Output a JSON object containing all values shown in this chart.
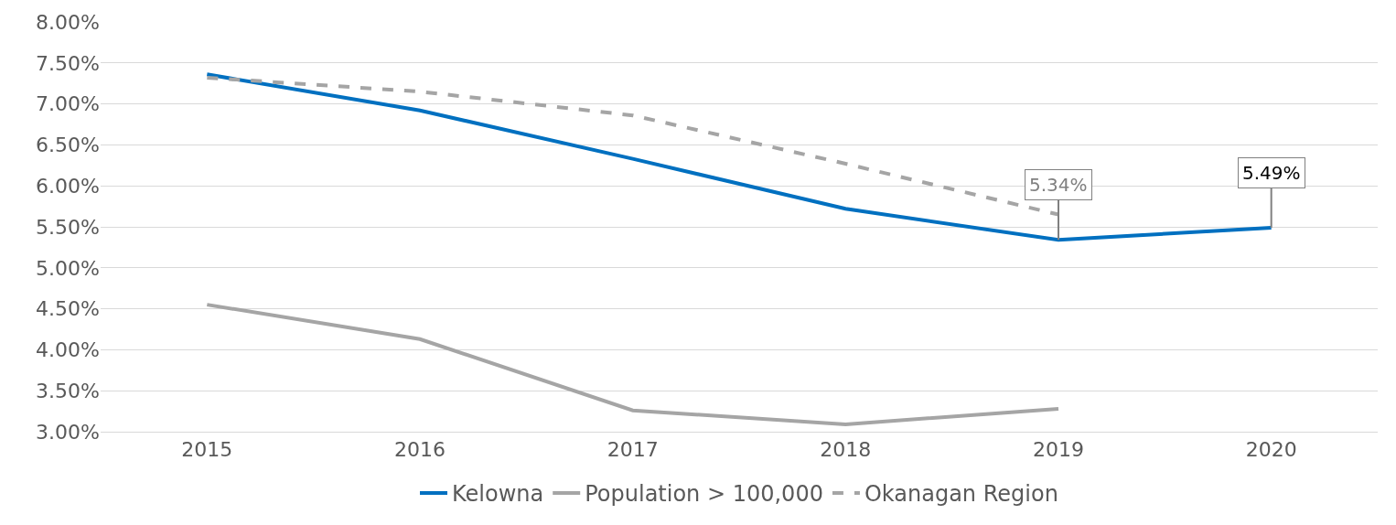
{
  "chart_data": {
    "type": "line",
    "categories": [
      "2015",
      "2016",
      "2017",
      "2018",
      "2019",
      "2020"
    ],
    "series": [
      {
        "name": "Kelowna",
        "color": "#0070c0",
        "values": [
          7.36,
          6.92,
          6.33,
          5.72,
          5.34,
          5.49
        ]
      },
      {
        "name": "Population > 100,000",
        "color": "#a5a5a5",
        "values": [
          4.55,
          4.13,
          3.26,
          3.09,
          3.28,
          null
        ]
      },
      {
        "name": "Okanagan Region",
        "color": "#a5a5a5",
        "line_style": "dashed",
        "values": [
          7.32,
          7.15,
          6.86,
          6.27,
          5.65,
          null
        ]
      }
    ],
    "ylim": [
      3,
      8
    ],
    "yticks": [
      {
        "value": 3,
        "label": "3.00%"
      },
      {
        "value": 3.5,
        "label": "3.50%"
      },
      {
        "value": 4,
        "label": "4.00%"
      },
      {
        "value": 4.5,
        "label": "4.50%"
      },
      {
        "value": 5,
        "label": "5.00%"
      },
      {
        "value": 5.5,
        "label": "5.50%"
      },
      {
        "value": 6,
        "label": "6.00%"
      },
      {
        "value": 6.5,
        "label": "6.50%"
      },
      {
        "value": 7,
        "label": "7.00%"
      },
      {
        "value": 7.5,
        "label": "7.50%"
      },
      {
        "value": 8,
        "label": "8.00%"
      }
    ],
    "annotations": [
      {
        "text": "5.34%",
        "x": "2019",
        "y": 5.34
      },
      {
        "text": "5.49%",
        "x": "2020",
        "y": 5.49
      }
    ],
    "grid": "y",
    "legend": "bottom",
    "marker": "none"
  }
}
